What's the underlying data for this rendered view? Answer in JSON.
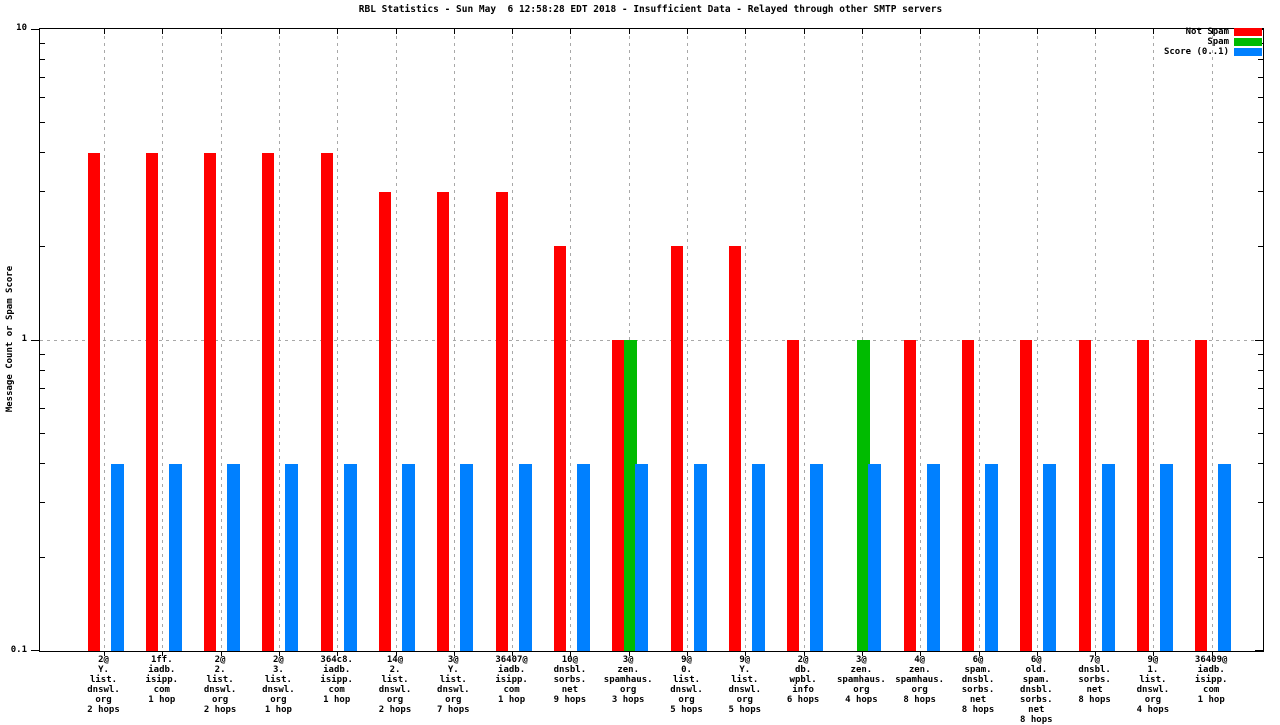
{
  "title": "RBL Statistics - Sun May  6 12:58:28 EDT 2018 - Insufficient Data - Relayed through other SMTP servers",
  "ylabel": "Message Count or Spam Score",
  "legend": {
    "position": "top-right",
    "entries": [
      {
        "label": "Not Spam",
        "color": "#ff0000"
      },
      {
        "label": "Spam",
        "color": "#00bb00"
      },
      {
        "label": "Score (0..1)",
        "color": "#0080ff"
      }
    ]
  },
  "colors": {
    "not_spam": "#ff0000",
    "spam": "#00bb00",
    "score": "#0080ff",
    "grid": "#a8a8a8",
    "border": "#000000",
    "background": "#ffffff"
  },
  "chart_data": {
    "type": "bar",
    "yscale": "log",
    "ylim": [
      0.1,
      10
    ],
    "ytick_labels": [
      {
        "value": 10,
        "label": "10"
      },
      {
        "value": 1,
        "label": "1"
      },
      {
        "value": 0.1,
        "label": "0.1"
      }
    ],
    "grid": {
      "vertical_at_each_category": true,
      "horizontal_at": 1
    },
    "title": "RBL Statistics - Sun May  6 12:58:28 EDT 2018 - Insufficient Data - Relayed through other SMTP servers",
    "xlabel": "",
    "ylabel": "Message Count or Spam Score",
    "categories": [
      "2@\nY.\nlist.\ndnswl.\norg\n2 hops",
      "1ff.\niadb.\nisipp.\ncom\n1 hop",
      "2@\n2.\nlist.\ndnswl.\norg\n2 hops",
      "2@\n3.\nlist.\ndnswl.\norg\n1 hop",
      "364c8.\niadb.\nisipp.\ncom\n1 hop",
      "14@\n2.\nlist.\ndnswl.\norg\n2 hops",
      "3@\nY.\nlist.\ndnswl.\norg\n7 hops",
      "36407@\niadb.\nisipp.\ncom\n1 hop",
      "10@\ndnsbl.\nsorbs.\nnet\n9 hops",
      "3@\nzen.\nspamhaus.\norg\n3 hops",
      "9@\n0.\nlist.\ndnswl.\norg\n5 hops",
      "9@\nY.\nlist.\ndnswl.\norg\n5 hops",
      "2@\ndb.\nwpbl.\ninfo\n6 hops",
      "3@\nzen.\nspamhaus.\norg\n4 hops",
      "4@\nzen.\nspamhaus.\norg\n8 hops",
      "6@\nspam.\ndnsbl.\nsorbs.\nnet\n8 hops",
      "6@\nold.\nspam.\ndnsbl.\nsorbs.\nnet\n8 hops",
      "7@\ndnsbl.\nsorbs.\nnet\n8 hops",
      "9@\n1.\nlist.\ndnswl.\norg\n4 hops",
      "36409@\niadb.\nisipp.\ncom\n1 hop"
    ],
    "series": [
      {
        "name": "Not Spam",
        "color": "#ff0000",
        "values": [
          4,
          4,
          4,
          4,
          4,
          3,
          3,
          3,
          2,
          1,
          2,
          2,
          1,
          null,
          1,
          1,
          1,
          1,
          1,
          1
        ]
      },
      {
        "name": "Spam",
        "color": "#00bb00",
        "values": [
          null,
          null,
          null,
          null,
          null,
          null,
          null,
          null,
          null,
          1,
          null,
          null,
          null,
          1,
          null,
          null,
          null,
          null,
          null,
          null
        ]
      },
      {
        "name": "Score (0..1)",
        "color": "#0080ff",
        "values": [
          0.4,
          0.4,
          0.4,
          0.4,
          0.4,
          0.4,
          0.4,
          0.4,
          0.4,
          0.4,
          0.4,
          0.4,
          0.4,
          0.4,
          0.4,
          0.4,
          0.4,
          0.4,
          0.4,
          0.4
        ]
      }
    ]
  }
}
